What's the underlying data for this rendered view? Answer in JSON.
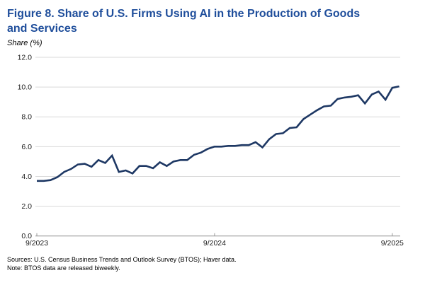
{
  "header": {
    "title_line1": "Figure 8. Share of U.S. Firms Using AI in the Production of Goods",
    "title_line2": "and Services",
    "title_color": "#1F4E9B"
  },
  "chart": {
    "y_axis_title": "Share (%)"
  },
  "footer": {
    "sources": "Sources: U.S. Census Business Trends and Outlook Survey (BTOS); Haver data.",
    "note": "Note: BTOS data are released biweekly."
  },
  "chart_data": {
    "type": "line",
    "title": "Figure 8. Share of U.S. Firms Using AI in the Production of Goods and Services",
    "ylabel": "Share (%)",
    "ylim": [
      0,
      12
    ],
    "y_ticks": [
      0,
      2,
      4,
      6,
      8,
      10,
      12
    ],
    "y_tick_labels": [
      "0.0",
      "2.0",
      "4.0",
      "6.0",
      "8.0",
      "10.0",
      "12.0"
    ],
    "x_tick_labels": [
      "9/2023",
      "9/2024",
      "9/2025"
    ],
    "x_tick_indices": [
      0,
      26,
      52
    ],
    "frequency": "biweekly",
    "grid": true,
    "legend_position": "none",
    "series": [
      {
        "name": "Share of U.S. firms using AI",
        "values": [
          3.7,
          3.7,
          3.75,
          3.95,
          4.3,
          4.5,
          4.8,
          4.85,
          4.65,
          5.1,
          4.9,
          5.4,
          4.3,
          4.4,
          4.2,
          4.7,
          4.7,
          4.55,
          4.95,
          4.7,
          5.0,
          5.1,
          5.1,
          5.45,
          5.6,
          5.85,
          6.0,
          6.0,
          6.05,
          6.05,
          6.1,
          6.1,
          6.3,
          5.95,
          6.5,
          6.85,
          6.9,
          7.25,
          7.3,
          7.85,
          8.15,
          8.45,
          8.7,
          8.75,
          9.2,
          9.3,
          9.35,
          9.45,
          8.9,
          9.5,
          9.7,
          9.15,
          9.95,
          10.05
        ]
      }
    ],
    "line_color": "#1E3864",
    "grid_color": "#D9D9D9",
    "axis_color": "#999999",
    "tick_label_color": "#1a1a1a"
  }
}
